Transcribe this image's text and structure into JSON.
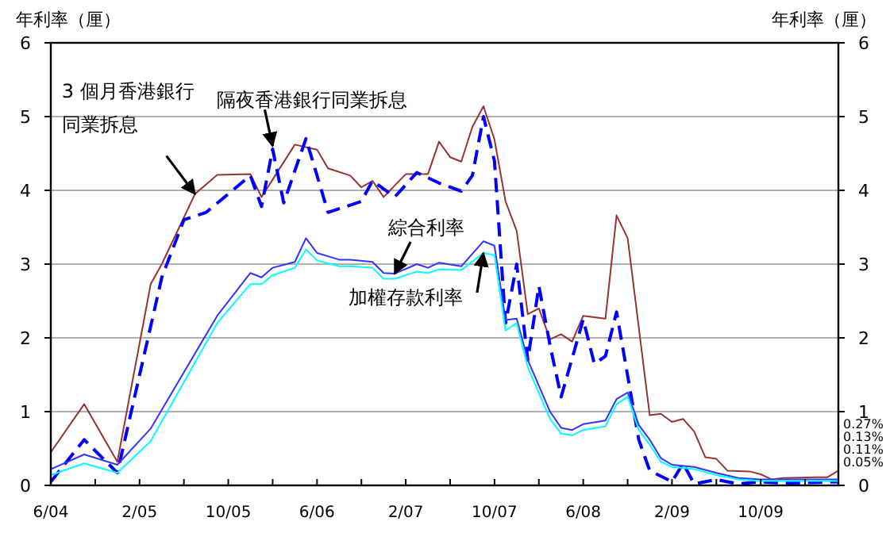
{
  "chart_data": {
    "type": "line",
    "ylabel": "年利率（厘）",
    "y2label": "年利率（厘）",
    "xlim": [
      "2004-06",
      "2010-05"
    ],
    "xticks": [
      {
        "value": "2004-06",
        "label": "6/04"
      },
      {
        "value": "2004-10",
        "label": null
      },
      {
        "value": "2005-02",
        "label": "2/05"
      },
      {
        "value": "2005-06",
        "label": null
      },
      {
        "value": "2005-10",
        "label": "10/05"
      },
      {
        "value": "2006-02",
        "label": null
      },
      {
        "value": "2006-06",
        "label": "6/06"
      },
      {
        "value": "2006-10",
        "label": null
      },
      {
        "value": "2007-02",
        "label": "2/07"
      },
      {
        "value": "2007-06",
        "label": null
      },
      {
        "value": "2007-10",
        "label": "10/07"
      },
      {
        "value": "2008-02",
        "label": null
      },
      {
        "value": "2008-06",
        "label": "6/08"
      },
      {
        "value": "2008-10",
        "label": null
      },
      {
        "value": "2009-02",
        "label": "2/09"
      },
      {
        "value": "2009-06",
        "label": null
      },
      {
        "value": "2009-10",
        "label": "10/09"
      },
      {
        "value": "2010-02",
        "label": null
      }
    ],
    "ylim": [
      0,
      6
    ],
    "yticks": [
      0,
      1,
      2,
      3,
      4,
      5,
      6
    ],
    "y2lim": [
      0,
      6
    ],
    "y2ticks": [
      0,
      1,
      2,
      3,
      4,
      5,
      6
    ],
    "grid": "y",
    "marker": "none",
    "series": [
      {
        "color": "#993333",
        "line_style": "solid",
        "x": [
          "2004-06",
          "2004-09",
          "2004-12",
          "2005-03",
          "2005-04",
          "2005-07",
          "2005-09",
          "2005-12",
          "2006-01",
          "2006-04",
          "2006-06",
          "2006-07",
          "2006-09",
          "2006-10",
          "2006-11",
          "2006-12",
          "2007-02",
          "2007-04",
          "2007-05",
          "2007-06",
          "2007-07",
          "2007-08",
          "2007-09",
          "2007-10",
          "2007-11",
          "2007-12",
          "2008-01",
          "2008-02",
          "2008-03",
          "2008-04",
          "2008-05",
          "2008-06",
          "2008-07",
          "2008-08",
          "2008-09",
          "2008-10",
          "2008-12",
          "2009-01",
          "2009-02",
          "2009-03",
          "2009-04",
          "2009-05",
          "2009-06",
          "2009-07",
          "2009-09",
          "2009-10",
          "2009-11",
          "2009-12",
          "2010-03",
          "2010-04",
          "2010-05"
        ],
        "values": [
          0.45,
          1.1,
          0.32,
          2.73,
          3.0,
          3.95,
          4.21,
          4.22,
          3.91,
          4.62,
          4.55,
          4.3,
          4.2,
          4.04,
          4.13,
          3.91,
          4.22,
          4.22,
          4.66,
          4.45,
          4.39,
          4.86,
          5.14,
          4.69,
          3.85,
          3.45,
          2.32,
          2.4,
          1.98,
          2.05,
          1.95,
          2.3,
          2.28,
          2.26,
          3.66,
          3.35,
          0.95,
          0.97,
          0.86,
          0.9,
          0.73,
          0.38,
          0.36,
          0.2,
          0.19,
          0.15,
          0.08,
          0.1,
          0.11,
          0.11,
          0.2
        ]
      },
      {
        "color": "#0000ff",
        "line_style": "dashed",
        "x": [
          "2004-06",
          "2004-09",
          "2004-12",
          "2005-04",
          "2005-06",
          "2005-08",
          "2005-12",
          "2006-01",
          "2006-02",
          "2006-03",
          "2006-05",
          "2006-07",
          "2006-10",
          "2006-11",
          "2007-01",
          "2007-03",
          "2007-05",
          "2007-07",
          "2007-08",
          "2007-09",
          "2007-10",
          "2007-11",
          "2007-12",
          "2008-01",
          "2008-02",
          "2008-03",
          "2008-04",
          "2008-06",
          "2008-07",
          "2008-08",
          "2008-09",
          "2008-11",
          "2008-12",
          "2009-02",
          "2009-03",
          "2009-04",
          "2009-06",
          "2009-08",
          "2009-10",
          "2009-12",
          "2010-05"
        ],
        "values": [
          0.05,
          0.62,
          0.17,
          2.82,
          3.6,
          3.7,
          4.2,
          3.78,
          4.56,
          3.83,
          4.7,
          3.7,
          3.85,
          4.13,
          3.91,
          4.24,
          4.1,
          3.99,
          4.2,
          5.0,
          4.4,
          2.2,
          3.0,
          1.7,
          2.7,
          1.9,
          1.2,
          2.25,
          1.65,
          1.75,
          2.35,
          0.62,
          0.2,
          0.05,
          0.3,
          0.02,
          0.08,
          0.02,
          0.05,
          0.03,
          0.05
        ]
      },
      {
        "color": "#3333ff",
        "line_style": "solid",
        "x": [
          "2004-06",
          "2004-09",
          "2004-12",
          "2005-03",
          "2005-09",
          "2005-12",
          "2006-01",
          "2006-02",
          "2006-04",
          "2006-05",
          "2006-06",
          "2006-08",
          "2006-09",
          "2006-11",
          "2006-12",
          "2007-01",
          "2007-03",
          "2007-04",
          "2007-05",
          "2007-07",
          "2007-09",
          "2007-10",
          "2007-11",
          "2007-12",
          "2008-01",
          "2008-03",
          "2008-04",
          "2008-05",
          "2008-06",
          "2008-08",
          "2008-09",
          "2008-10",
          "2008-11",
          "2008-12",
          "2009-01",
          "2009-02",
          "2009-04",
          "2009-06",
          "2009-08",
          "2009-10",
          "2010-05"
        ],
        "values": [
          0.22,
          0.42,
          0.28,
          0.77,
          2.3,
          2.88,
          2.82,
          2.95,
          3.03,
          3.35,
          3.15,
          3.06,
          3.06,
          3.03,
          2.88,
          2.87,
          3.0,
          2.95,
          3.02,
          2.97,
          3.31,
          3.25,
          2.24,
          2.26,
          1.7,
          1.0,
          0.78,
          0.75,
          0.83,
          0.88,
          1.17,
          1.26,
          0.82,
          0.62,
          0.37,
          0.28,
          0.25,
          0.17,
          0.1,
          0.08,
          0.08
        ]
      },
      {
        "color": "#00ffff",
        "line_style": "solid",
        "x": [
          "2004-06",
          "2004-09",
          "2004-12",
          "2005-03",
          "2005-09",
          "2005-12",
          "2006-01",
          "2006-02",
          "2006-04",
          "2006-05",
          "2006-06",
          "2006-08",
          "2006-09",
          "2006-11",
          "2006-12",
          "2007-01",
          "2007-03",
          "2007-04",
          "2007-05",
          "2007-07",
          "2007-09",
          "2007-10",
          "2007-11",
          "2007-12",
          "2008-01",
          "2008-03",
          "2008-04",
          "2008-05",
          "2008-06",
          "2008-08",
          "2008-09",
          "2008-10",
          "2008-11",
          "2008-12",
          "2009-01",
          "2009-02",
          "2009-04",
          "2009-06",
          "2009-08",
          "2009-10",
          "2010-05"
        ],
        "values": [
          0.14,
          0.3,
          0.17,
          0.6,
          2.2,
          2.73,
          2.73,
          2.85,
          2.95,
          3.2,
          3.05,
          2.97,
          2.97,
          2.95,
          2.8,
          2.8,
          2.9,
          2.88,
          2.93,
          2.92,
          3.15,
          3.12,
          2.1,
          2.2,
          1.6,
          0.9,
          0.7,
          0.68,
          0.75,
          0.8,
          1.1,
          1.2,
          0.75,
          0.55,
          0.32,
          0.25,
          0.22,
          0.14,
          0.08,
          0.06,
          0.06
        ]
      }
    ],
    "annotations": [
      {
        "text": "隔夜香港銀行同業拆息",
        "x": "2006-02",
        "y": 4.6
      },
      {
        "text": "3 個月香港銀行同業拆息",
        "x": "2005-07",
        "y": 3.95
      },
      {
        "text": "綜合利率",
        "x": "2007-01",
        "y": 2.87
      },
      {
        "text": "加權存款利率",
        "x": "2007-09",
        "y": 3.15
      },
      "0.27%",
      "0.13%",
      "0.11%",
      "0.05%"
    ]
  }
}
